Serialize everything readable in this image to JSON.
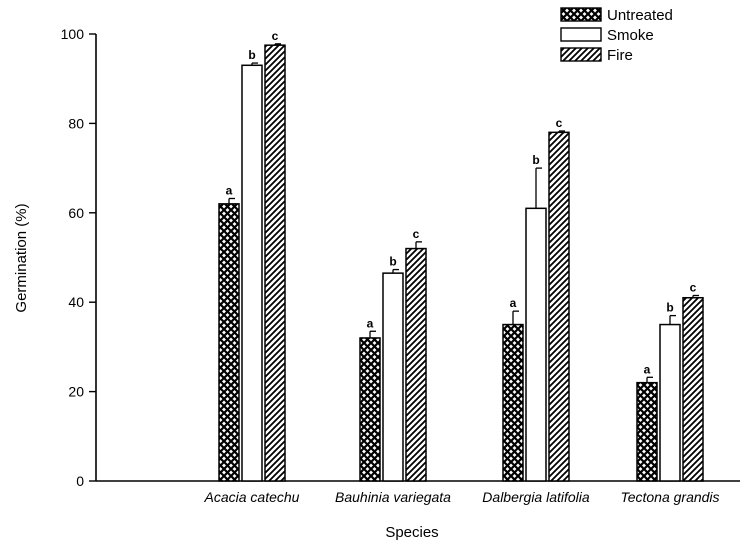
{
  "chart_data": {
    "type": "bar",
    "title": "",
    "xlabel": "Species",
    "ylabel": "Germination (%)",
    "ylim": [
      0,
      100
    ],
    "yticks": [
      "0",
      "20",
      "40",
      "60",
      "80",
      "100"
    ],
    "categories": [
      "Acacia catechu",
      "Bauhinia variegata",
      "Dalbergia latifolia",
      "Tectona grandis"
    ],
    "series": [
      {
        "name": "Untreated",
        "pattern": "crosshatch",
        "values": [
          62,
          32,
          35,
          22
        ],
        "errors": [
          1.2,
          1.5,
          3,
          1.2
        ],
        "letters": [
          "a",
          "a",
          "a",
          "a"
        ]
      },
      {
        "name": "Smoke",
        "pattern": "open",
        "values": [
          93,
          46.5,
          61,
          35
        ],
        "errors": [
          0.5,
          0.8,
          9,
          2
        ],
        "letters": [
          "b",
          "b",
          "b",
          "b"
        ]
      },
      {
        "name": "Fire",
        "pattern": "diagonal",
        "values": [
          97.5,
          52,
          78,
          41
        ],
        "errors": [
          0.3,
          1.5,
          0.3,
          0.5
        ],
        "letters": [
          "c",
          "c",
          "c",
          "c"
        ]
      }
    ],
    "legend_position": "top-right",
    "grid": false
  }
}
